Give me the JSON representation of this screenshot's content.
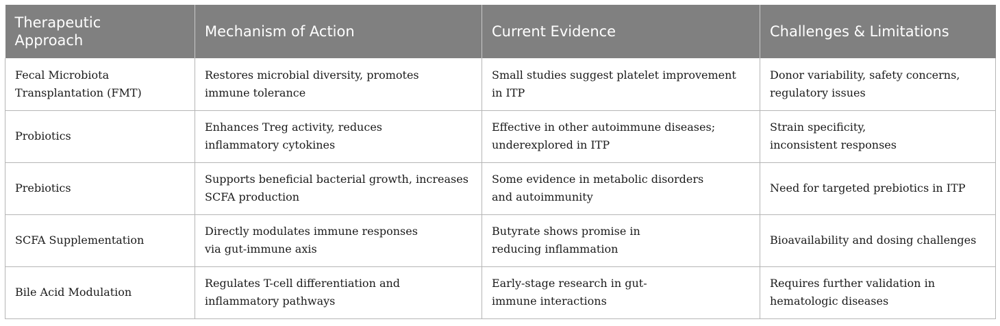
{
  "table": {
    "headers": [
      "Therapeutic\nApproach",
      "Mechanism of Action",
      "Current Evidence",
      "Challenges & Limitations"
    ],
    "rows": [
      [
        "Fecal Microbiota\nTransplantation (FMT)",
        "Restores microbial diversity, promotes\nimmune tolerance",
        "Small studies suggest platelet improvement\nin ITP",
        "Donor variability, safety concerns,\nregulatory issues"
      ],
      [
        "Probiotics",
        "Enhances Treg activity, reduces\ninflammatory cytokines",
        "Effective in other autoimmune diseases;\nunderexplored in ITP",
        "Strain specificity,\ninconsistent responses"
      ],
      [
        "Prebiotics",
        "Supports beneficial bacterial growth, increases\nSCFA production",
        "Some evidence in metabolic disorders\nand autoimmunity",
        "Need for targeted prebiotics in ITP"
      ],
      [
        "SCFA Supplementation",
        "Directly modulates immune responses\nvia gut-immune axis",
        "Butyrate shows promise in\nreducing inflammation",
        "Bioavailability and dosing challenges"
      ],
      [
        "Bile Acid Modulation",
        "Regulates T-cell differentiation and\ninflammatory pathways",
        "Early-stage research in gut-\nimmune interactions",
        "Requires further validation in\nhematologic diseases"
      ]
    ]
  }
}
